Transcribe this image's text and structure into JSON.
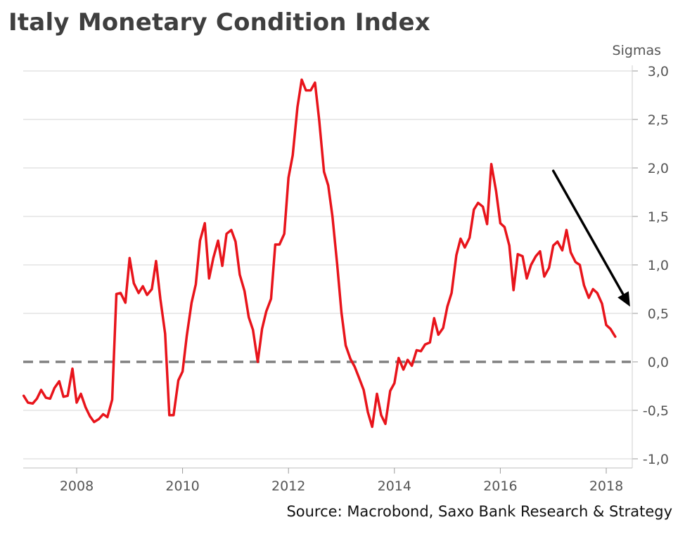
{
  "chart_data": {
    "type": "line",
    "title": "Italy Monetary Condition Index",
    "ylabel": "Sigmas",
    "source": "Source: Macrobond, Saxo Bank Research & Strategy",
    "xlim": [
      2007.0,
      2018.5
    ],
    "ylim": [
      -1.1,
      3.0
    ],
    "x_ticks": [
      2008,
      2010,
      2012,
      2014,
      2016,
      2018
    ],
    "x_tick_labels": [
      "2008",
      "2010",
      "2012",
      "2014",
      "2016",
      "2018"
    ],
    "y_ticks": [
      -1.0,
      -0.5,
      0.0,
      0.5,
      1.0,
      1.5,
      2.0,
      2.5,
      3.0
    ],
    "y_tick_labels": [
      "-1,0",
      "-0,5",
      "0,0",
      "0,5",
      "1,0",
      "1,5",
      "2,0",
      "2,5",
      "3,0"
    ],
    "grid": true,
    "zero_line": {
      "value": 0.0,
      "style": "dashed",
      "color": "#808080"
    },
    "annotation_arrow": {
      "from": [
        2017.0,
        1.97
      ],
      "to": [
        2018.45,
        0.57
      ],
      "color": "#000000"
    },
    "series": [
      {
        "color": "#e8141b",
        "x": [
          2007.0,
          2007.08,
          2007.17,
          2007.25,
          2007.33,
          2007.42,
          2007.5,
          2007.58,
          2007.67,
          2007.75,
          2007.83,
          2007.92,
          2008.0,
          2008.08,
          2008.17,
          2008.25,
          2008.33,
          2008.42,
          2008.5,
          2008.58,
          2008.67,
          2008.75,
          2008.83,
          2008.92,
          2009.0,
          2009.08,
          2009.17,
          2009.25,
          2009.33,
          2009.42,
          2009.5,
          2009.58,
          2009.67,
          2009.75,
          2009.83,
          2009.92,
          2010.0,
          2010.08,
          2010.17,
          2010.25,
          2010.33,
          2010.42,
          2010.5,
          2010.58,
          2010.67,
          2010.75,
          2010.83,
          2010.92,
          2011.0,
          2011.08,
          2011.17,
          2011.25,
          2011.33,
          2011.42,
          2011.5,
          2011.58,
          2011.67,
          2011.75,
          2011.83,
          2011.92,
          2012.0,
          2012.08,
          2012.17,
          2012.25,
          2012.33,
          2012.42,
          2012.5,
          2012.58,
          2012.67,
          2012.75,
          2012.83,
          2012.92,
          2013.0,
          2013.08,
          2013.17,
          2013.25,
          2013.33,
          2013.42,
          2013.5,
          2013.58,
          2013.67,
          2013.75,
          2013.83,
          2013.92,
          2014.0,
          2014.08,
          2014.17,
          2014.25,
          2014.33,
          2014.42,
          2014.5,
          2014.58,
          2014.67,
          2014.75,
          2014.83,
          2014.92,
          2015.0,
          2015.08,
          2015.17,
          2015.25,
          2015.33,
          2015.42,
          2015.5,
          2015.58,
          2015.67,
          2015.75,
          2015.83,
          2015.92,
          2016.0,
          2016.08,
          2016.17,
          2016.25,
          2016.33,
          2016.42,
          2016.5,
          2016.58,
          2016.67,
          2016.75,
          2016.83,
          2016.92,
          2017.0,
          2017.08,
          2017.17,
          2017.25,
          2017.33,
          2017.42,
          2017.5,
          2017.58,
          2017.67,
          2017.75,
          2017.83,
          2017.92,
          2018.0,
          2018.08,
          2018.17
        ],
        "y": [
          -0.35,
          -0.42,
          -0.43,
          -0.38,
          -0.29,
          -0.37,
          -0.38,
          -0.27,
          -0.2,
          -0.36,
          -0.35,
          -0.07,
          -0.42,
          -0.33,
          -0.47,
          -0.56,
          -0.62,
          -0.59,
          -0.54,
          -0.57,
          -0.39,
          0.7,
          0.71,
          0.61,
          1.07,
          0.81,
          0.71,
          0.78,
          0.69,
          0.75,
          1.04,
          0.65,
          0.29,
          -0.55,
          -0.55,
          -0.19,
          -0.1,
          0.27,
          0.61,
          0.8,
          1.25,
          1.43,
          0.86,
          1.07,
          1.25,
          0.99,
          1.32,
          1.36,
          1.24,
          0.9,
          0.73,
          0.46,
          0.33,
          0.0,
          0.34,
          0.52,
          0.65,
          1.21,
          1.21,
          1.32,
          1.9,
          2.13,
          2.63,
          2.91,
          2.8,
          2.8,
          2.88,
          2.49,
          1.96,
          1.82,
          1.5,
          1.0,
          0.51,
          0.17,
          0.03,
          -0.05,
          -0.16,
          -0.29,
          -0.52,
          -0.67,
          -0.33,
          -0.55,
          -0.64,
          -0.3,
          -0.22,
          0.04,
          -0.08,
          0.02,
          -0.04,
          0.12,
          0.11,
          0.18,
          0.2,
          0.45,
          0.28,
          0.35,
          0.57,
          0.71,
          1.1,
          1.27,
          1.18,
          1.28,
          1.57,
          1.64,
          1.6,
          1.42,
          2.04,
          1.76,
          1.43,
          1.39,
          1.2,
          0.74,
          1.11,
          1.09,
          0.86,
          1.0,
          1.09,
          1.14,
          0.88,
          0.97,
          1.2,
          1.24,
          1.15,
          1.36,
          1.13,
          1.03,
          1.0,
          0.79,
          0.66,
          0.75,
          0.71,
          0.6,
          0.38,
          0.34,
          0.26
        ]
      }
    ]
  }
}
